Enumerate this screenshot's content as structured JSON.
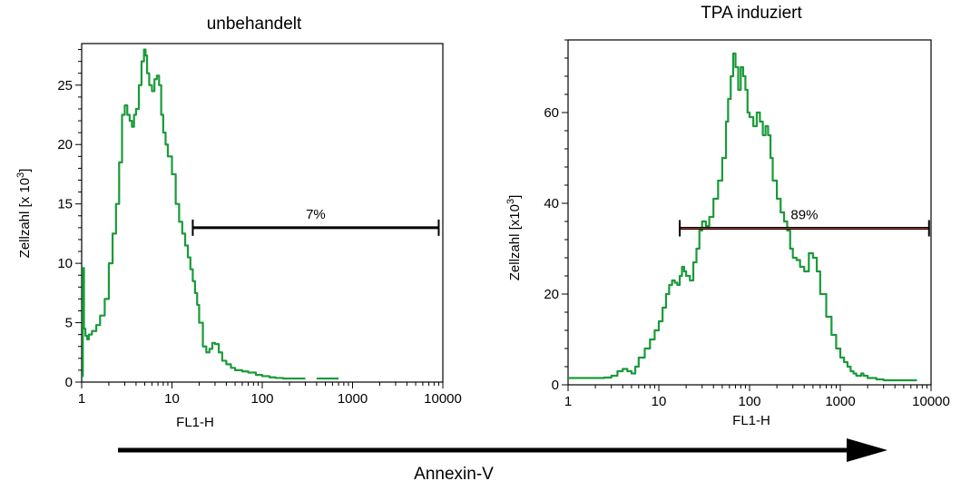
{
  "chart_data": [
    {
      "type": "line",
      "title": "unbehandelt",
      "xlabel": "FL1-H",
      "ylabel": "Zellzahl [x 10",
      "ylabel_sup": "3",
      "ylabel_close": "]",
      "xscale": "log",
      "xlim": [
        1,
        10000
      ],
      "ylim": [
        0,
        28.5
      ],
      "xticks": [
        1,
        10,
        100,
        1000,
        10000
      ],
      "xtick_labels": [
        "1",
        "10",
        "100",
        "1000",
        "10000"
      ],
      "yticks": [
        0,
        5,
        10,
        15,
        20,
        25
      ],
      "ytick_labels": [
        "0",
        "5",
        "10",
        "15",
        "20",
        "25"
      ],
      "series_color": "#1a9a3a",
      "gate": {
        "x_start": 17,
        "x_end": 9000,
        "y": 13,
        "label": "7%",
        "color": "#000000"
      },
      "series": [
        {
          "x": [
            1.0,
            1.03,
            1.06,
            1.1,
            1.15,
            1.2,
            1.3,
            1.45,
            1.6,
            1.8,
            2.0,
            2.2,
            2.4,
            2.6,
            2.8,
            3.0,
            3.2,
            3.4,
            3.6,
            3.8,
            4.0,
            4.3,
            4.6,
            4.9,
            5.1,
            5.3,
            5.6,
            6.0,
            6.4,
            6.8,
            7.2,
            7.6,
            8.0,
            8.5,
            9.0,
            10,
            11,
            12,
            13,
            14,
            15,
            16,
            17,
            18,
            19,
            20,
            22,
            24,
            26,
            28,
            30,
            33,
            36,
            40,
            45,
            50,
            60,
            70,
            85,
            100,
            120,
            140,
            170,
            200,
            250,
            300
          ],
          "y": [
            0.5,
            9.6,
            4.5,
            3.9,
            3.6,
            4.0,
            4.3,
            4.8,
            5.6,
            7.0,
            10.0,
            12.5,
            15.0,
            18.5,
            22.5,
            23.3,
            22.5,
            22.0,
            21.5,
            22.5,
            23.0,
            25.0,
            27.0,
            28.0,
            27.5,
            26.0,
            25.0,
            24.5,
            25.5,
            25.8,
            25.0,
            22.5,
            21.0,
            20.0,
            19.0,
            17.5,
            15.0,
            13.5,
            12.5,
            11.5,
            10.5,
            9.5,
            8.5,
            7.5,
            6.5,
            5.0,
            3.0,
            2.5,
            2.8,
            3.3,
            3.2,
            2.5,
            1.8,
            1.5,
            1.2,
            1.0,
            0.9,
            0.8,
            0.6,
            0.5,
            0.4,
            0.35,
            0.3,
            0.3,
            0.3,
            0.3
          ]
        },
        {
          "x": [
            400,
            700
          ],
          "y": [
            0.3,
            0.3
          ]
        }
      ]
    },
    {
      "type": "line",
      "title": "TPA induziert",
      "xlabel": "FL1-H",
      "ylabel": "Zellzahl [x10",
      "ylabel_sup": "3",
      "ylabel_close": "]",
      "xscale": "log",
      "xlim": [
        1,
        10000
      ],
      "ylim": [
        0,
        76
      ],
      "xticks": [
        1,
        10,
        100,
        1000,
        10000
      ],
      "xtick_labels": [
        "1",
        "10",
        "100",
        "1000",
        "10000"
      ],
      "yticks": [
        0,
        20,
        40,
        60
      ],
      "ytick_labels": [
        "0",
        "20",
        "40",
        "60"
      ],
      "series_color": "#1a9a3a",
      "gate": {
        "x_start": 17,
        "x_end": 9500,
        "y": 34.5,
        "label": "89%",
        "color": "#000000",
        "inner_color": "#c0392b"
      },
      "series": [
        {
          "x": [
            1.0,
            1.5,
            2.0,
            2.5,
            3.0,
            3.5,
            4.0,
            4.5,
            5.0,
            5.5,
            6.0,
            7.0,
            8.0,
            9.0,
            10,
            11,
            12,
            13,
            14,
            15,
            16,
            17,
            18,
            19,
            20,
            22,
            24,
            26,
            28,
            30,
            33,
            36,
            40,
            45,
            50,
            55,
            58,
            62,
            66,
            70,
            75,
            80,
            85,
            90,
            95,
            100,
            110,
            120,
            130,
            140,
            150,
            160,
            170,
            180,
            200,
            220,
            240,
            260,
            280,
            300,
            330,
            360,
            400,
            450,
            500,
            550,
            600,
            700,
            800,
            900,
            1000,
            1100,
            1200,
            1300,
            1400,
            1500,
            1600,
            1700,
            1800,
            2000,
            2500,
            3000,
            4000,
            5000,
            6000,
            7000
          ],
          "y": [
            1.5,
            1.5,
            1.5,
            1.6,
            2.0,
            3.0,
            3.5,
            3.0,
            2.5,
            4.0,
            6.0,
            8.0,
            10.0,
            12.0,
            14.0,
            17.0,
            20.0,
            22.0,
            23.0,
            22.5,
            22.0,
            24.0,
            26.0,
            25.0,
            24.0,
            23.0,
            27.0,
            30.0,
            34.0,
            36.0,
            35.0,
            37.0,
            41.0,
            45.0,
            50.0,
            58.0,
            63.0,
            68.0,
            73.0,
            70.0,
            65.0,
            70.0,
            68.0,
            65.0,
            60.0,
            59.0,
            57.0,
            60.0,
            58.0,
            55.0,
            57.0,
            55.0,
            50.0,
            45.0,
            41.0,
            38.0,
            36.0,
            34.0,
            30.0,
            28.0,
            27.5,
            26.0,
            25.0,
            29.0,
            28.0,
            25.0,
            20.0,
            15.0,
            11.0,
            8.0,
            6.0,
            5.0,
            4.0,
            3.0,
            2.5,
            2.0,
            2.0,
            2.5,
            2.0,
            1.5,
            1.2,
            1.0,
            1.0,
            1.0,
            1.0,
            1.0
          ]
        }
      ]
    }
  ],
  "bottom_axis": {
    "label": "Annexin-V"
  }
}
